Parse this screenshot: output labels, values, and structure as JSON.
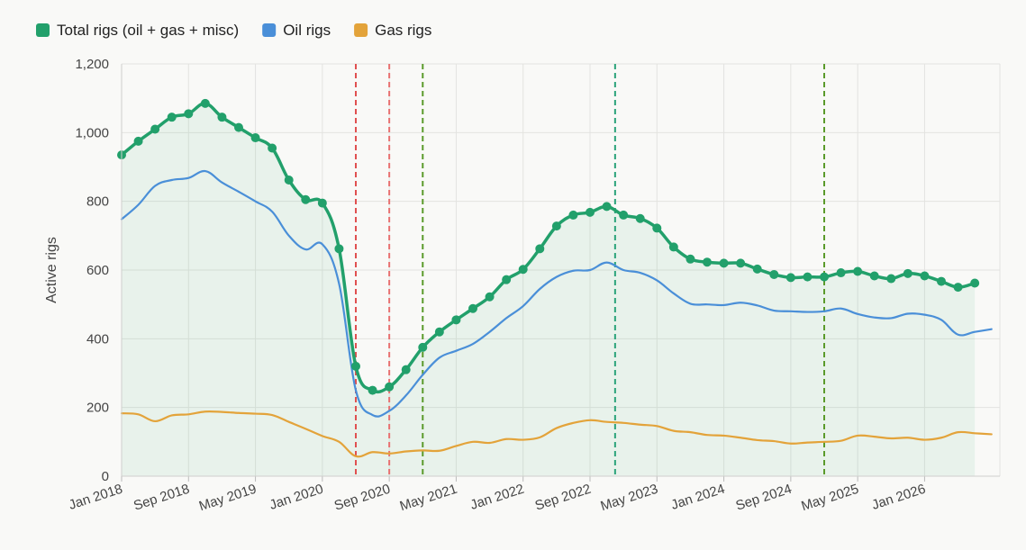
{
  "chart_data": {
    "type": "line",
    "xlabel": "",
    "ylabel": "Active rigs",
    "ylim": [
      0,
      1200
    ],
    "yticks": [
      0,
      200,
      400,
      600,
      800,
      1000,
      1200
    ],
    "ytick_labels": [
      "0",
      "200",
      "400",
      "600",
      "800",
      "1,000",
      "1,200"
    ],
    "xlim": [
      "2018-01",
      "2026-10"
    ],
    "xticks": [
      "2018-01",
      "2018-09",
      "2019-05",
      "2020-01",
      "2020-09",
      "2021-05",
      "2022-01",
      "2022-09",
      "2023-05",
      "2024-01",
      "2024-09",
      "2025-05",
      "2026-01"
    ],
    "xtick_labels": [
      "Jan 2018",
      "Sep 2018",
      "May 2019",
      "Jan 2020",
      "Sep 2020",
      "May 2021",
      "Jan 2022",
      "Sep 2022",
      "May 2023",
      "Jan 2024",
      "Sep 2024",
      "May 2025",
      "Jan 2026"
    ],
    "grid": true,
    "legend": "top-left",
    "vertical_markers": [
      {
        "x": "2020-05",
        "style": "dashed",
        "color": "#e05050"
      },
      {
        "x": "2020-09",
        "style": "dashed",
        "color": "#e87070"
      },
      {
        "x": "2021-01",
        "style": "dashed",
        "color": "#5a9a2a"
      },
      {
        "x": "2022-12",
        "style": "dashed",
        "color": "#2aa37a"
      },
      {
        "x": "2025-01",
        "style": "dashed",
        "color": "#5a9a2a"
      }
    ],
    "series": [
      {
        "name": "Total rigs (oil + gas + misc)",
        "color": "#22a06b",
        "style": "line-with-markers",
        "fill": true,
        "points": [
          [
            "2018-01",
            935
          ],
          [
            "2018-03",
            975
          ],
          [
            "2018-05",
            1010
          ],
          [
            "2018-07",
            1045
          ],
          [
            "2018-09",
            1055
          ],
          [
            "2018-11",
            1085
          ],
          [
            "2019-01",
            1045
          ],
          [
            "2019-03",
            1015
          ],
          [
            "2019-05",
            985
          ],
          [
            "2019-07",
            955
          ],
          [
            "2019-09",
            862
          ],
          [
            "2019-11",
            805
          ],
          [
            "2020-01",
            795
          ],
          [
            "2020-03",
            662
          ],
          [
            "2020-05",
            320
          ],
          [
            "2020-07",
            250
          ],
          [
            "2020-09",
            260
          ],
          [
            "2020-11",
            310
          ],
          [
            "2021-01",
            375
          ],
          [
            "2021-03",
            420
          ],
          [
            "2021-05",
            455
          ],
          [
            "2021-07",
            488
          ],
          [
            "2021-09",
            522
          ],
          [
            "2021-11",
            572
          ],
          [
            "2022-01",
            602
          ],
          [
            "2022-03",
            662
          ],
          [
            "2022-05",
            728
          ],
          [
            "2022-07",
            760
          ],
          [
            "2022-09",
            768
          ],
          [
            "2022-11",
            785
          ],
          [
            "2023-01",
            760
          ],
          [
            "2023-03",
            750
          ],
          [
            "2023-05",
            722
          ],
          [
            "2023-07",
            667
          ],
          [
            "2023-09",
            632
          ],
          [
            "2023-11",
            623
          ],
          [
            "2024-01",
            620
          ],
          [
            "2024-03",
            620
          ],
          [
            "2024-05",
            603
          ],
          [
            "2024-07",
            587
          ],
          [
            "2024-09",
            578
          ],
          [
            "2024-11",
            580
          ],
          [
            "2025-01",
            580
          ],
          [
            "2025-03",
            592
          ],
          [
            "2025-05",
            596
          ],
          [
            "2025-07",
            583
          ],
          [
            "2025-09",
            575
          ],
          [
            "2025-11",
            590
          ],
          [
            "2026-01",
            583
          ],
          [
            "2026-03",
            567
          ],
          [
            "2026-05",
            550
          ],
          [
            "2026-07",
            562
          ]
        ]
      },
      {
        "name": "Oil rigs",
        "color": "#4a8fd8",
        "style": "line",
        "points": [
          [
            "2018-01",
            748
          ],
          [
            "2018-03",
            790
          ],
          [
            "2018-05",
            845
          ],
          [
            "2018-07",
            862
          ],
          [
            "2018-09",
            868
          ],
          [
            "2018-11",
            888
          ],
          [
            "2019-01",
            855
          ],
          [
            "2019-03",
            828
          ],
          [
            "2019-05",
            800
          ],
          [
            "2019-07",
            770
          ],
          [
            "2019-09",
            700
          ],
          [
            "2019-11",
            660
          ],
          [
            "2020-01",
            675
          ],
          [
            "2020-03",
            560
          ],
          [
            "2020-05",
            250
          ],
          [
            "2020-07",
            178
          ],
          [
            "2020-09",
            190
          ],
          [
            "2020-11",
            235
          ],
          [
            "2021-01",
            295
          ],
          [
            "2021-03",
            345
          ],
          [
            "2021-05",
            365
          ],
          [
            "2021-07",
            385
          ],
          [
            "2021-09",
            420
          ],
          [
            "2021-11",
            460
          ],
          [
            "2022-01",
            495
          ],
          [
            "2022-03",
            545
          ],
          [
            "2022-05",
            580
          ],
          [
            "2022-07",
            598
          ],
          [
            "2022-09",
            600
          ],
          [
            "2022-11",
            622
          ],
          [
            "2023-01",
            600
          ],
          [
            "2023-03",
            592
          ],
          [
            "2023-05",
            570
          ],
          [
            "2023-07",
            532
          ],
          [
            "2023-09",
            502
          ],
          [
            "2023-11",
            500
          ],
          [
            "2024-01",
            498
          ],
          [
            "2024-03",
            505
          ],
          [
            "2024-05",
            497
          ],
          [
            "2024-07",
            482
          ],
          [
            "2024-09",
            480
          ],
          [
            "2024-11",
            478
          ],
          [
            "2025-01",
            480
          ],
          [
            "2025-03",
            488
          ],
          [
            "2025-05",
            472
          ],
          [
            "2025-07",
            462
          ],
          [
            "2025-09",
            460
          ],
          [
            "2025-11",
            473
          ],
          [
            "2026-01",
            470
          ],
          [
            "2026-03",
            455
          ],
          [
            "2026-05",
            412
          ],
          [
            "2026-07",
            420
          ],
          [
            "2026-09",
            428
          ]
        ]
      },
      {
        "name": "Gas rigs",
        "color": "#e3a33a",
        "style": "line",
        "points": [
          [
            "2018-01",
            183
          ],
          [
            "2018-03",
            180
          ],
          [
            "2018-05",
            160
          ],
          [
            "2018-07",
            177
          ],
          [
            "2018-09",
            180
          ],
          [
            "2018-11",
            188
          ],
          [
            "2019-01",
            187
          ],
          [
            "2019-03",
            184
          ],
          [
            "2019-05",
            182
          ],
          [
            "2019-07",
            178
          ],
          [
            "2019-09",
            158
          ],
          [
            "2019-11",
            138
          ],
          [
            "2020-01",
            117
          ],
          [
            "2020-03",
            100
          ],
          [
            "2020-05",
            58
          ],
          [
            "2020-07",
            70
          ],
          [
            "2020-09",
            66
          ],
          [
            "2020-11",
            72
          ],
          [
            "2021-01",
            75
          ],
          [
            "2021-03",
            74
          ],
          [
            "2021-05",
            88
          ],
          [
            "2021-07",
            100
          ],
          [
            "2021-09",
            97
          ],
          [
            "2021-11",
            108
          ],
          [
            "2022-01",
            106
          ],
          [
            "2022-03",
            113
          ],
          [
            "2022-05",
            140
          ],
          [
            "2022-07",
            155
          ],
          [
            "2022-09",
            163
          ],
          [
            "2022-11",
            158
          ],
          [
            "2023-01",
            155
          ],
          [
            "2023-03",
            150
          ],
          [
            "2023-05",
            146
          ],
          [
            "2023-07",
            132
          ],
          [
            "2023-09",
            128
          ],
          [
            "2023-11",
            120
          ],
          [
            "2024-01",
            118
          ],
          [
            "2024-03",
            112
          ],
          [
            "2024-05",
            105
          ],
          [
            "2024-07",
            102
          ],
          [
            "2024-09",
            95
          ],
          [
            "2024-11",
            98
          ],
          [
            "2025-01",
            100
          ],
          [
            "2025-03",
            103
          ],
          [
            "2025-05",
            118
          ],
          [
            "2025-07",
            115
          ],
          [
            "2025-09",
            110
          ],
          [
            "2025-11",
            112
          ],
          [
            "2026-01",
            106
          ],
          [
            "2026-03",
            112
          ],
          [
            "2026-05",
            128
          ],
          [
            "2026-07",
            125
          ],
          [
            "2026-09",
            122
          ]
        ]
      }
    ]
  }
}
